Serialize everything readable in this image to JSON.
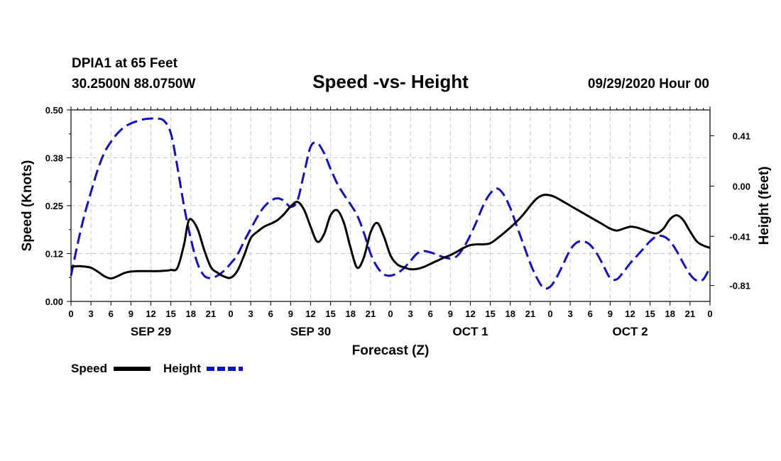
{
  "header": {
    "station": "DPIA1 at 65 Feet",
    "coords": "30.2500N 88.0750W",
    "title": "Speed -vs- Height",
    "run": "09/29/2020 Hour 00"
  },
  "chart_data": {
    "type": "line",
    "title": "Speed -vs- Height",
    "xlabel": "Forecast (Z)",
    "ylabel": "Speed (Knots)",
    "y2label": "Height (feet)",
    "grid": true,
    "xlim": [
      0,
      96
    ],
    "ylim": [
      0,
      0.5
    ],
    "y2lim": [
      -0.94,
      0.62
    ],
    "xtick_labels": [
      "0",
      "3",
      "6",
      "9",
      "12",
      "15",
      "18",
      "21",
      "0",
      "3",
      "6",
      "9",
      "12",
      "15",
      "18",
      "21",
      "0",
      "3",
      "6",
      "9",
      "12",
      "15",
      "18",
      "21",
      "0",
      "3",
      "6",
      "9",
      "12",
      "15",
      "18",
      "21",
      "0"
    ],
    "yticks": [
      "0.00",
      "0.12",
      "0.25",
      "0.38",
      "0.50"
    ],
    "ytick_values": [
      0,
      0.125,
      0.25,
      0.375,
      0.5
    ],
    "y2ticks": [
      "-0.81",
      "-0.41",
      "0.00",
      "0.41"
    ],
    "y2tick_values": [
      -0.81,
      -0.41,
      0.0,
      0.41
    ],
    "day_labels": [
      {
        "label": "SEP 29",
        "x": 12
      },
      {
        "label": "SEP 30",
        "x": 36
      },
      {
        "label": "OCT 1",
        "x": 60
      },
      {
        "label": "OCT 2",
        "x": 84
      }
    ],
    "series": [
      {
        "name": "Speed",
        "axis": "left",
        "color": "#000000",
        "dash": "solid",
        "x": [
          0,
          1,
          2,
          3,
          4,
          5,
          6,
          7,
          8,
          9,
          10,
          11,
          12,
          13,
          14,
          15,
          16,
          17,
          17.5,
          18,
          19,
          20,
          21,
          22,
          23,
          24,
          25,
          26,
          27,
          28,
          29,
          30,
          31,
          32,
          33,
          34,
          35,
          36,
          37,
          38,
          39,
          40,
          41,
          42,
          43,
          44,
          45,
          46,
          47,
          48,
          49,
          50,
          51,
          52,
          53,
          54,
          55,
          56,
          57,
          58,
          59,
          60,
          61,
          62,
          63,
          64,
          65,
          66,
          67,
          68,
          69,
          70,
          71,
          72,
          73,
          74,
          75,
          76,
          77,
          78,
          79,
          80,
          81,
          82,
          83,
          84,
          85,
          86,
          87,
          88,
          89,
          90,
          91,
          92,
          93,
          94,
          95,
          96
        ],
        "values": [
          0.09,
          0.092,
          0.091,
          0.088,
          0.078,
          0.066,
          0.06,
          0.066,
          0.074,
          0.078,
          0.079,
          0.079,
          0.079,
          0.079,
          0.08,
          0.082,
          0.088,
          0.15,
          0.2,
          0.215,
          0.19,
          0.135,
          0.09,
          0.075,
          0.065,
          0.062,
          0.08,
          0.12,
          0.165,
          0.182,
          0.195,
          0.203,
          0.212,
          0.228,
          0.248,
          0.26,
          0.24,
          0.195,
          0.156,
          0.175,
          0.225,
          0.238,
          0.205,
          0.14,
          0.088,
          0.115,
          0.18,
          0.205,
          0.17,
          0.12,
          0.097,
          0.089,
          0.084,
          0.085,
          0.09,
          0.098,
          0.106,
          0.114,
          0.121,
          0.13,
          0.14,
          0.147,
          0.149,
          0.149,
          0.152,
          0.164,
          0.178,
          0.193,
          0.209,
          0.228,
          0.25,
          0.269,
          0.278,
          0.277,
          0.27,
          0.26,
          0.25,
          0.24,
          0.23,
          0.22,
          0.21,
          0.2,
          0.19,
          0.185,
          0.19,
          0.195,
          0.193,
          0.187,
          0.181,
          0.178,
          0.19,
          0.215,
          0.225,
          0.212,
          0.183,
          0.157,
          0.146,
          0.14
        ]
      },
      {
        "name": "Height",
        "axis": "right",
        "color": "#1010cc",
        "dash": "dashed",
        "x": [
          0,
          1,
          2,
          3,
          4,
          5,
          6,
          7,
          8,
          9,
          10,
          11,
          12,
          13,
          14,
          15,
          16,
          17,
          18,
          19,
          20,
          21,
          22,
          23,
          24,
          25,
          26,
          27,
          28,
          29,
          30,
          31,
          32,
          33,
          34,
          35,
          36,
          37,
          38,
          39,
          40,
          41,
          42,
          43,
          44,
          45,
          46,
          47,
          48,
          49,
          50,
          51,
          52,
          53,
          54,
          55,
          56,
          57,
          58,
          59,
          60,
          61,
          62,
          63,
          64,
          65,
          66,
          67,
          68,
          69,
          70,
          71,
          72,
          73,
          74,
          75,
          76,
          77,
          78,
          79,
          80,
          81,
          82,
          83,
          84,
          85,
          86,
          87,
          88,
          89,
          90,
          91,
          92,
          93,
          94,
          95,
          96
        ],
        "values": [
          -0.73,
          -0.47,
          -0.24,
          -0.05,
          0.13,
          0.27,
          0.36,
          0.43,
          0.48,
          0.51,
          0.53,
          0.545,
          0.55,
          0.55,
          0.53,
          0.43,
          0.15,
          -0.17,
          -0.43,
          -0.63,
          -0.73,
          -0.75,
          -0.73,
          -0.69,
          -0.63,
          -0.56,
          -0.45,
          -0.35,
          -0.25,
          -0.17,
          -0.12,
          -0.1,
          -0.12,
          -0.17,
          -0.12,
          0.1,
          0.32,
          0.35,
          0.27,
          0.14,
          0.02,
          -0.07,
          -0.15,
          -0.24,
          -0.38,
          -0.55,
          -0.66,
          -0.72,
          -0.73,
          -0.71,
          -0.67,
          -0.61,
          -0.55,
          -0.53,
          -0.54,
          -0.56,
          -0.58,
          -0.59,
          -0.57,
          -0.5,
          -0.4,
          -0.28,
          -0.15,
          -0.06,
          -0.02,
          -0.07,
          -0.18,
          -0.33,
          -0.48,
          -0.63,
          -0.75,
          -0.83,
          -0.82,
          -0.74,
          -0.63,
          -0.52,
          -0.46,
          -0.45,
          -0.48,
          -0.55,
          -0.65,
          -0.75,
          -0.76,
          -0.7,
          -0.63,
          -0.57,
          -0.51,
          -0.45,
          -0.41,
          -0.41,
          -0.45,
          -0.53,
          -0.63,
          -0.72,
          -0.77,
          -0.76,
          -0.66
        ]
      }
    ]
  },
  "legend": {
    "speed_label": "Speed",
    "height_label": "Height"
  }
}
